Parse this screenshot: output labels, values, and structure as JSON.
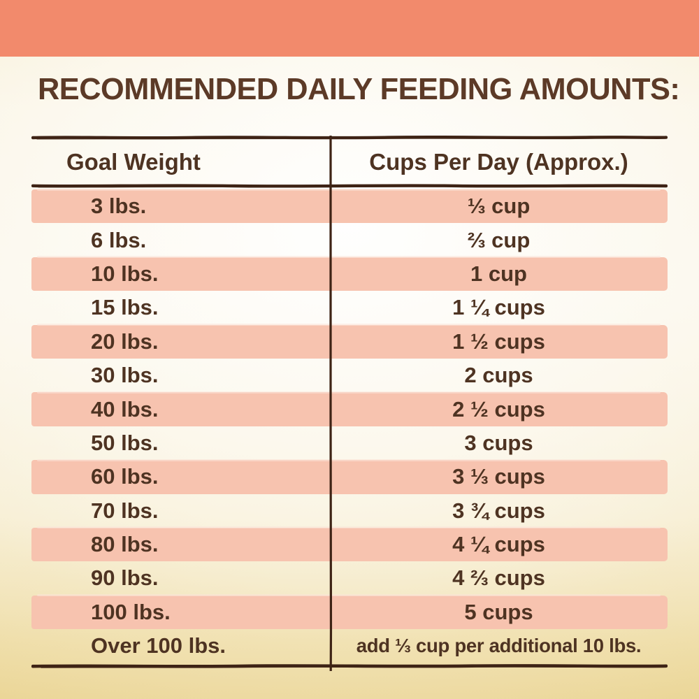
{
  "title": "RECOMMENDED DAILY FEEDING AMOUNTS:",
  "table": {
    "headers": [
      "Goal Weight",
      "Cups Per Day (Approx.)"
    ],
    "rows": [
      {
        "weight": "3 lbs.",
        "cups": "⅓ cup"
      },
      {
        "weight": "6 lbs.",
        "cups": "⅔ cup"
      },
      {
        "weight": "10 lbs.",
        "cups": "1 cup"
      },
      {
        "weight": "15 lbs.",
        "cups": "1 ¼ cups"
      },
      {
        "weight": "20 lbs.",
        "cups": "1 ½ cups"
      },
      {
        "weight": "30 lbs.",
        "cups": "2 cups"
      },
      {
        "weight": "40 lbs.",
        "cups": "2 ½ cups"
      },
      {
        "weight": "50 lbs.",
        "cups": "3 cups"
      },
      {
        "weight": "60 lbs.",
        "cups": "3 ⅓ cups"
      },
      {
        "weight": "70 lbs.",
        "cups": "3 ¾ cups"
      },
      {
        "weight": "80 lbs.",
        "cups": "4 ¼ cups"
      },
      {
        "weight": "90 lbs.",
        "cups": "4 ⅔ cups"
      },
      {
        "weight": "100 lbs.",
        "cups": "5 cups"
      },
      {
        "weight": "Over 100 lbs.",
        "cups": "add ⅓ cup per additional 10 lbs."
      }
    ]
  },
  "colors": {
    "coral_band": "#F28A6C",
    "pink_stripe": "#F7C3AF",
    "background_cream": "#FBF8EE",
    "background_gold_edge": "#EBD697",
    "text_brown": "#4E3322",
    "title_brown": "#5C3A27",
    "rule_brown": "#3E2315"
  },
  "chart_data": {
    "type": "table",
    "title": "RECOMMENDED DAILY FEEDING AMOUNTS:",
    "columns": [
      "Goal Weight",
      "Cups Per Day (Approx.)"
    ],
    "rows": [
      [
        "3 lbs.",
        "⅓ cup"
      ],
      [
        "6 lbs.",
        "⅔ cup"
      ],
      [
        "10 lbs.",
        "1 cup"
      ],
      [
        "15 lbs.",
        "1 ¼ cups"
      ],
      [
        "20 lbs.",
        "1 ½ cups"
      ],
      [
        "30 lbs.",
        "2 cups"
      ],
      [
        "40 lbs.",
        "2 ½ cups"
      ],
      [
        "50 lbs.",
        "3 cups"
      ],
      [
        "60 lbs.",
        "3 ⅓ cups"
      ],
      [
        "70 lbs.",
        "3 ¾ cups"
      ],
      [
        "80 lbs.",
        "4 ¼ cups"
      ],
      [
        "90 lbs.",
        "4 ⅔ cups"
      ],
      [
        "100 lbs.",
        "5 cups"
      ],
      [
        "Over 100 lbs.",
        "add ⅓ cup per additional 10 lbs."
      ]
    ],
    "goal_weight_lbs": [
      3,
      6,
      10,
      15,
      20,
      30,
      40,
      50,
      60,
      70,
      80,
      90,
      100
    ],
    "cups_per_day": [
      0.333,
      0.667,
      1,
      1.25,
      1.5,
      2,
      2.5,
      3,
      3.333,
      3.75,
      4.25,
      4.667,
      5
    ],
    "over_100_lbs_rule": "add ⅓ cup per additional 10 lbs."
  }
}
